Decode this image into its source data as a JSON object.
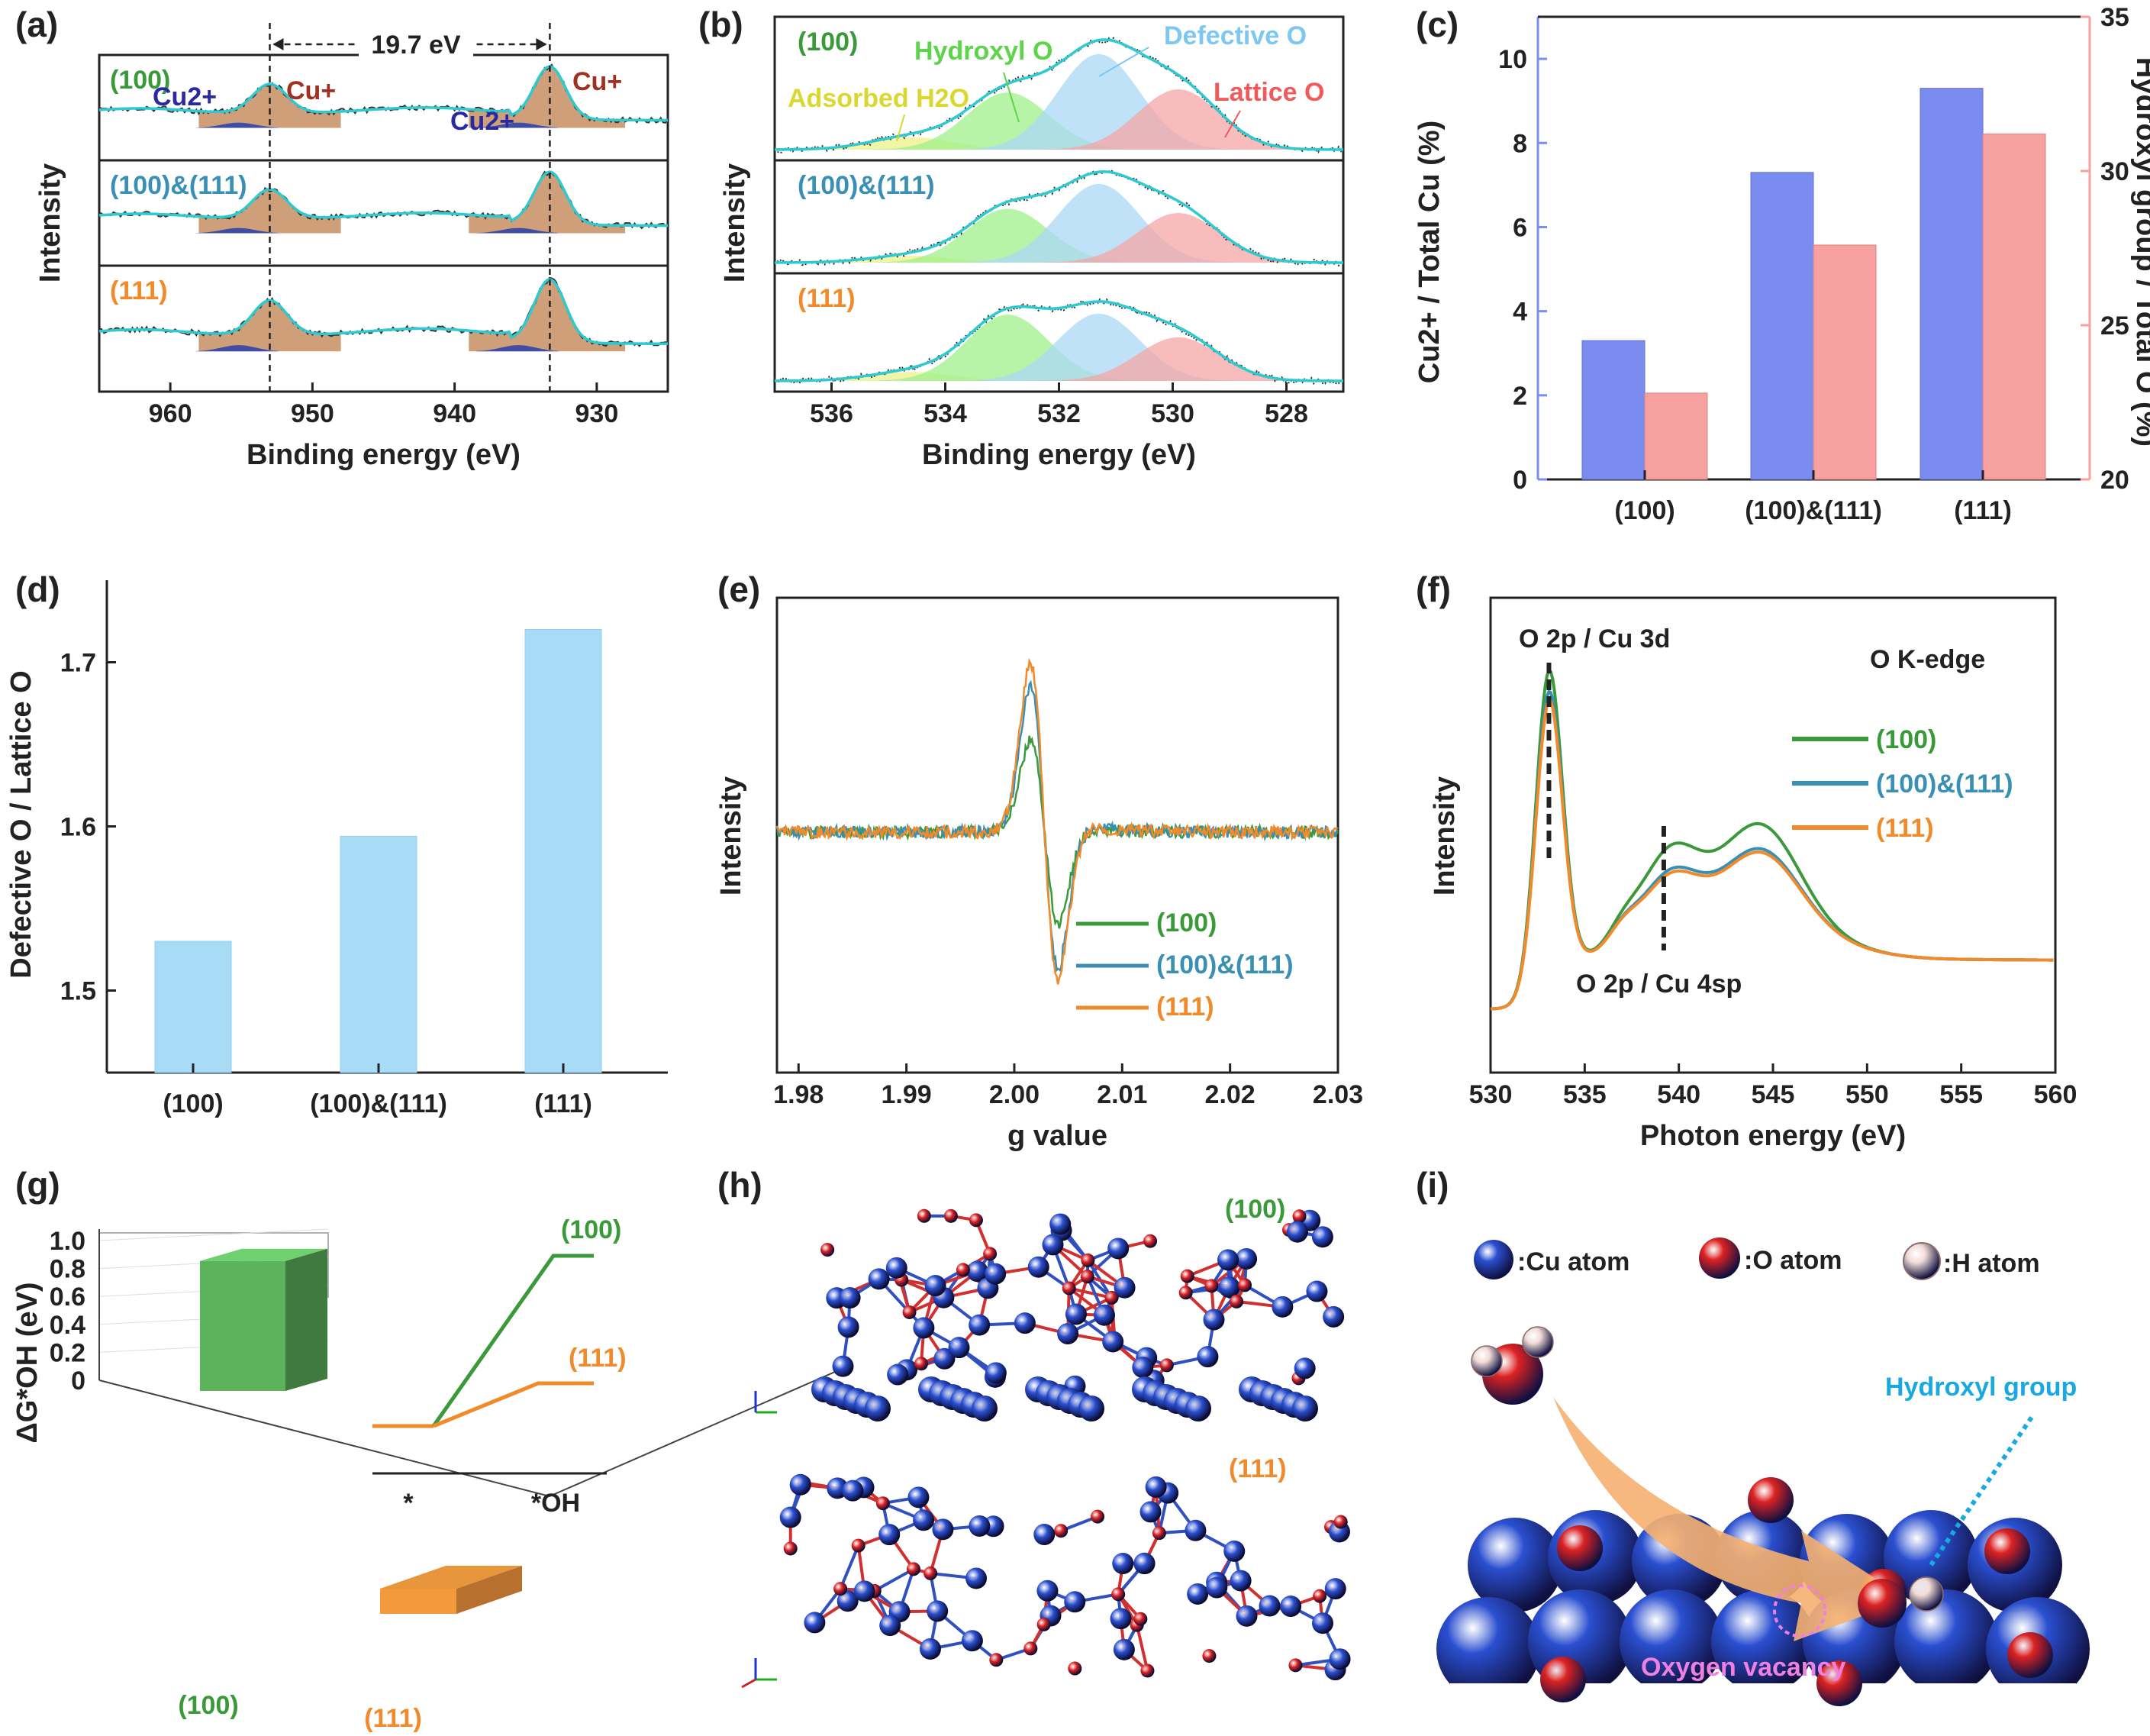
{
  "colors": {
    "p100": "#3a9a3a",
    "p100_111": "#3a8fb5",
    "p111": "#f08a2a",
    "blue_bar": "#7b8cf0",
    "red_bar": "#f6a0a0",
    "cyan_bar": "#a8dcf6",
    "fit": "#2ecad0",
    "cu_peak": "#c9956a",
    "hydroxyl_fill": "#9ff08a",
    "defective_fill": "#a9d8f7",
    "lattice_fill": "#f6a6a6",
    "adsorbed_fill": "#eef08a",
    "cu_atom": "#2a4fd0",
    "o_atom": "#dd2222",
    "h_atom": "#f1dcd6",
    "hydroxyl_text": "#1aa8e0",
    "vacancy_text": "#f080e0",
    "arrow": "#f5b070"
  },
  "panels": [
    {
      "id": "a",
      "label": "(a)"
    },
    {
      "id": "b",
      "label": "(b)"
    },
    {
      "id": "c",
      "label": "(c)"
    },
    {
      "id": "d",
      "label": "(d)"
    },
    {
      "id": "e",
      "label": "(e)"
    },
    {
      "id": "f",
      "label": "(f)"
    },
    {
      "id": "g",
      "label": "(g)"
    },
    {
      "id": "h",
      "label": "(h)"
    },
    {
      "id": "i",
      "label": "(i)"
    }
  ],
  "chart_data": [
    {
      "panel": "a",
      "type": "line",
      "xlabel": "Binding energy (eV)",
      "ylabel": "Intensity",
      "xlim": [
        965,
        925
      ],
      "xticks": [
        960,
        950,
        940,
        930
      ],
      "subplots": [
        "(100)",
        "(100)&(111)",
        "(111)"
      ],
      "annotations": {
        "splitting": "19.7 eV",
        "cu2_left": "Cu2+",
        "cu_plus_left": "Cu+",
        "cu2_right": "Cu2+",
        "cu_plus_right": "Cu+"
      },
      "peaks_eV": [
        953.0,
        933.3
      ]
    },
    {
      "panel": "b",
      "type": "line",
      "xlabel": "Binding energy (eV)",
      "ylabel": "Intensity",
      "xlim": [
        537,
        527
      ],
      "xticks": [
        536,
        534,
        532,
        530,
        528
      ],
      "subplots": [
        "(100)",
        "(100)&(111)",
        "(111)"
      ],
      "components": [
        {
          "name": "Adsorbed H2O",
          "center_eV": 534.6
        },
        {
          "name": "Hydroxyl O",
          "center_eV": 532.9
        },
        {
          "name": "Defective O",
          "center_eV": 531.3
        },
        {
          "name": "Lattice O",
          "center_eV": 529.9
        }
      ]
    },
    {
      "panel": "c",
      "type": "bar",
      "categories": [
        "(100)",
        "(100)&(111)",
        "(111)"
      ],
      "series": [
        {
          "name": "Cu2+ / Total Cu (%)",
          "values": [
            3.3,
            7.3,
            9.3
          ],
          "axis": "left"
        },
        {
          "name": "Hydroxyl group / Total O (%)",
          "values": [
            22.8,
            27.6,
            31.2
          ],
          "axis": "right"
        }
      ],
      "ylabel_left": "Cu2+ / Total Cu (%)",
      "ylabel_right": "Hydroxyl group / Total O (%)",
      "ylim_left": [
        0,
        11
      ],
      "ylim_right": [
        20,
        35
      ],
      "yticks_left": [
        0,
        2,
        4,
        6,
        8,
        10
      ],
      "yticks_right": [
        20,
        25,
        30,
        35
      ]
    },
    {
      "panel": "d",
      "type": "bar",
      "categories": [
        "(100)",
        "(100)&(111)",
        "(111)"
      ],
      "values": [
        1.53,
        1.594,
        1.72
      ],
      "ylabel": "Defective O / Lattice O",
      "ylim": [
        1.45,
        1.75
      ],
      "yticks": [
        1.5,
        1.6,
        1.7
      ]
    },
    {
      "panel": "e",
      "type": "line",
      "xlabel": "g value",
      "ylabel": "Intensity",
      "xlim": [
        1.978,
        2.03
      ],
      "xticks": [
        1.98,
        1.99,
        2.0,
        2.01,
        2.02,
        2.03
      ],
      "xtick_labels": [
        "1.98",
        "1.99",
        "2.00",
        "2.01",
        "2.02",
        "2.03"
      ],
      "series": [
        {
          "name": "(100)",
          "min": -0.55,
          "max": 0.55
        },
        {
          "name": "(100)&(111)",
          "min": -0.82,
          "max": 0.86
        },
        {
          "name": "(111)",
          "min": -0.9,
          "max": 1.0
        }
      ]
    },
    {
      "panel": "f",
      "type": "line",
      "xlabel": "Photon energy (eV)",
      "ylabel": "Intensity",
      "xlim": [
        530,
        560
      ],
      "xticks": [
        530,
        535,
        540,
        545,
        550,
        555,
        560
      ],
      "title": "O K-edge",
      "annotations": [
        "O 2p / Cu 3d",
        "O 2p / Cu 4sp"
      ],
      "series": [
        {
          "name": "(100)"
        },
        {
          "name": "(100)&(111)"
        },
        {
          "name": "(111)"
        }
      ]
    },
    {
      "panel": "g",
      "type": "bar",
      "categories": [
        "(100)",
        "(111)"
      ],
      "values": [
        0.93,
        0.19
      ],
      "ylabel": "ΔG*OH (eV)",
      "ylim": [
        0,
        1.0
      ],
      "yticks": [
        0,
        0.2,
        0.4,
        0.6,
        0.8,
        1.0
      ],
      "ytick_labels": [
        "0",
        "0.2",
        "0.4",
        "0.6",
        "0.8",
        "1.0"
      ],
      "inset": {
        "labels": [
          "(100)",
          "(111)"
        ],
        "x_labels": [
          "*",
          "*OH"
        ]
      }
    }
  ],
  "h": {
    "top_label": "(100)",
    "bottom_label": "(111)"
  },
  "i": {
    "legend": [
      ":Cu atom",
      ":O atom",
      ":H atom"
    ],
    "hydroxyl": "Hydroxyl group",
    "vacancy": "Oxygen vacancy"
  }
}
